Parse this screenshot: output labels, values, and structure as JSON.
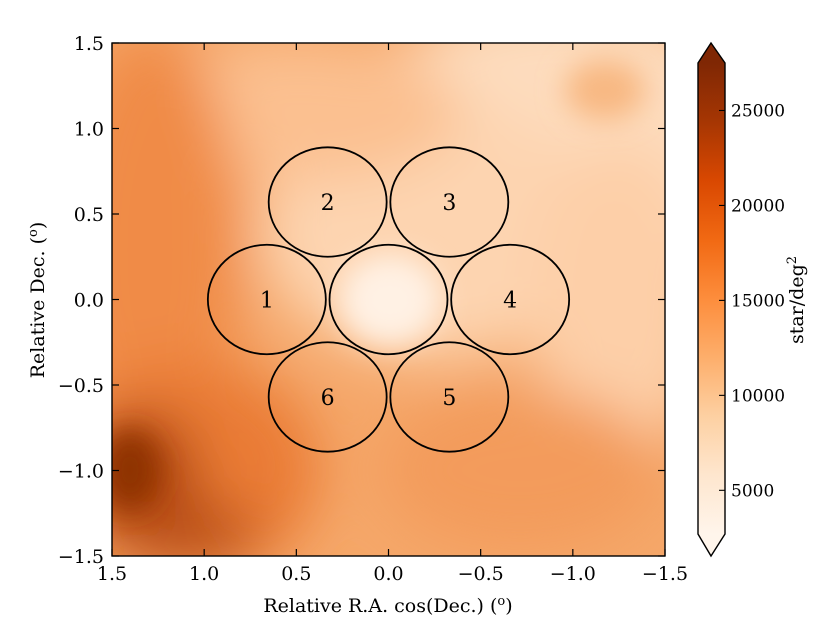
{
  "chart_data": {
    "type": "heatmap",
    "title": "",
    "xlabel": "Relative R.A. cos(Dec.) (",
    "xlabel_sup": "o",
    "xlabel_end": ")",
    "ylabel": "Relative Dec. (",
    "ylabel_sup": "o",
    "ylabel_end": ")",
    "xlim": [
      1.5,
      -1.5
    ],
    "ylim": [
      -1.5,
      1.5
    ],
    "x_ticks": [
      1.5,
      1.0,
      0.5,
      0.0,
      -0.5,
      -1.0,
      -1.5
    ],
    "x_tick_labels": [
      "1.5",
      "1.0",
      "0.5",
      "0.0",
      "−0.5",
      "−1.0",
      "−1.5"
    ],
    "y_ticks": [
      1.5,
      1.0,
      0.5,
      0.0,
      -0.5,
      -1.0,
      -1.5
    ],
    "y_tick_labels": [
      "1.5",
      "1.0",
      "0.5",
      "0.0",
      "−0.5",
      "−1.0",
      "−1.5"
    ],
    "colorbar": {
      "label": "star/deg",
      "label_sup": "2",
      "range": [
        2700,
        27500
      ],
      "extend": "both",
      "colormap": "Oranges",
      "ticks": [
        5000,
        10000,
        15000,
        20000,
        25000
      ],
      "tick_labels": [
        "5000",
        "10000",
        "15000",
        "20000",
        "25000"
      ]
    },
    "regions": [
      {
        "label": "",
        "x": 0.0,
        "y": 0.0,
        "radius": 0.32
      },
      {
        "label": "1",
        "x": 0.66,
        "y": 0.0,
        "radius": 0.32
      },
      {
        "label": "2",
        "x": 0.33,
        "y": 0.57,
        "radius": 0.32
      },
      {
        "label": "3",
        "x": -0.33,
        "y": 0.57,
        "radius": 0.32
      },
      {
        "label": "4",
        "x": -0.66,
        "y": 0.0,
        "radius": 0.32
      },
      {
        "label": "5",
        "x": -0.33,
        "y": -0.57,
        "radius": 0.32
      },
      {
        "label": "6",
        "x": 0.33,
        "y": -0.57,
        "radius": 0.32
      }
    ]
  },
  "colors": {
    "colormap_stops": [
      "#fff5eb",
      "#fee6ce",
      "#fdd0a2",
      "#fdae6b",
      "#fd8d3c",
      "#f16913",
      "#d94801",
      "#a63603",
      "#7f2704"
    ],
    "circle_stroke": "#000000"
  }
}
